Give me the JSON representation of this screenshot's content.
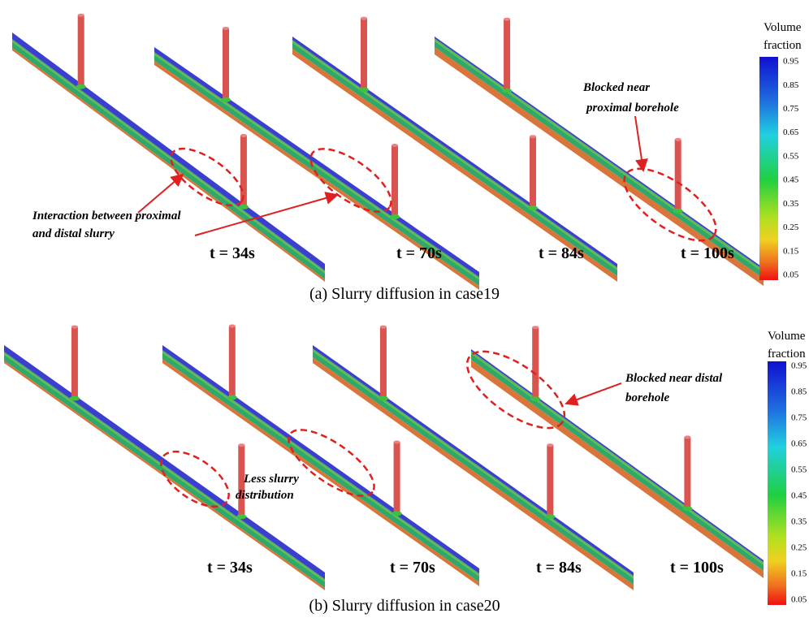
{
  "panels": [
    {
      "times": [
        "t = 34s",
        "t = 70s",
        "t = 84s",
        "t = 100s"
      ],
      "annotations": [
        [
          "Interaction between proximal",
          "and distal slurry"
        ],
        [
          "Blocked near",
          "proximal borehole"
        ]
      ],
      "colorbar": {
        "title": [
          "Volume",
          "fraction"
        ],
        "ticks": [
          "0.95",
          "0.85",
          "0.75",
          "0.65",
          "0.55",
          "0.45",
          "0.35",
          "0.25",
          "0.15",
          "0.05"
        ]
      },
      "caption": "(a)  Slurry diffusion in case19"
    },
    {
      "times": [
        "t = 34s",
        "t = 70s",
        "t = 84s",
        "t = 100s"
      ],
      "annotations": [
        [
          "Less slurry",
          "distribution"
        ],
        [
          "Blocked near distal",
          "borehole"
        ]
      ],
      "colorbar": {
        "title": [
          "Volume",
          "fraction"
        ],
        "ticks": [
          "0.95",
          "0.85",
          "0.75",
          "0.65",
          "0.55",
          "0.45",
          "0.35",
          "0.25",
          "0.15",
          "0.05"
        ]
      },
      "caption": "(b)  Slurry diffusion in case20"
    }
  ]
}
